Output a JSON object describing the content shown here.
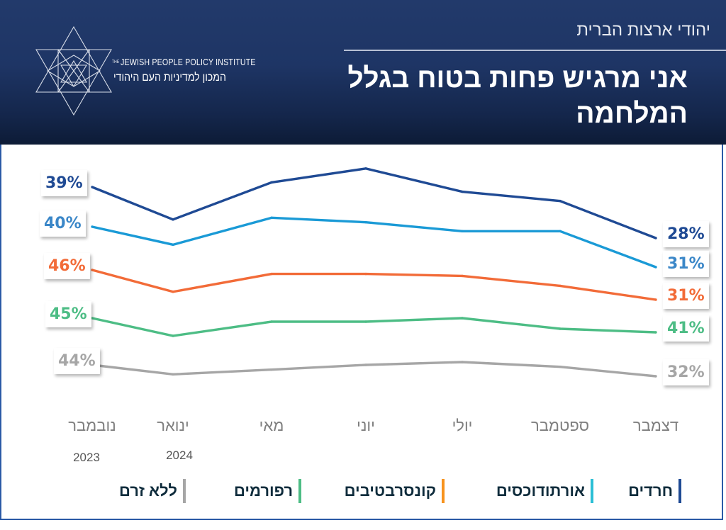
{
  "header": {
    "org_name_en_prefix": "THE",
    "org_name_en": "Jewish People Policy Institute",
    "org_name_he": "המכון למדיניות העם היהודי",
    "subtitle": "יהודי ארצות הברית",
    "title": "אני מרגיש פחות בטוח בגלל המלחמה",
    "logo_icon": "star-of-david-geometric-icon"
  },
  "chart_data": {
    "type": "line",
    "title": "אני מרגיש פחות בטוח בגלל המלחמה",
    "subtitle": "יהודי ארצות הברית",
    "xlabel": "",
    "ylabel": "",
    "unit": "%",
    "grid": false,
    "legend_position": "bottom",
    "categories": [
      "נובמבר",
      "ינואר",
      "מאי",
      "יוני",
      "יולי",
      "ספטמבר",
      "דצמבר"
    ],
    "category_years": [
      "2023",
      "2024",
      "",
      "",
      "",
      "",
      ""
    ],
    "series": [
      {
        "name": "חרדים",
        "color": "#1f4a94",
        "values": [
          39,
          32,
          40,
          43,
          38,
          36,
          28
        ],
        "start_label": "39%",
        "end_label": "28%"
      },
      {
        "name": "אורתודוכסים",
        "color": "#1a9ad6",
        "values": [
          40,
          36,
          42,
          41,
          39,
          39,
          31
        ],
        "start_label": "40%",
        "end_label": "31%"
      },
      {
        "name": "קונסרבטיבים",
        "color": "#f26b38",
        "values": [
          46,
          35,
          44,
          44,
          43,
          38,
          31
        ],
        "start_label": "46%",
        "end_label": "31%"
      },
      {
        "name": "רפורמים",
        "color": "#4dbd85",
        "values": [
          45,
          40,
          44,
          44,
          45,
          42,
          41
        ],
        "start_label": "45%",
        "end_label": "41%"
      },
      {
        "name": "ללא זרם",
        "color": "#a6a6a6",
        "values": [
          44,
          34,
          39,
          44,
          47,
          42,
          32
        ],
        "start_label": "44%",
        "end_label": "32%"
      }
    ],
    "label_colors": [
      "#1f4a94",
      "#3b87c8",
      "#f26b38",
      "#4dbd85",
      "#a6a6a6"
    ],
    "legend_swatch_colors": [
      "#1f4a94",
      "#2bbfd6",
      "#f7931e",
      "#4dbd85",
      "#a6a6a6"
    ]
  }
}
